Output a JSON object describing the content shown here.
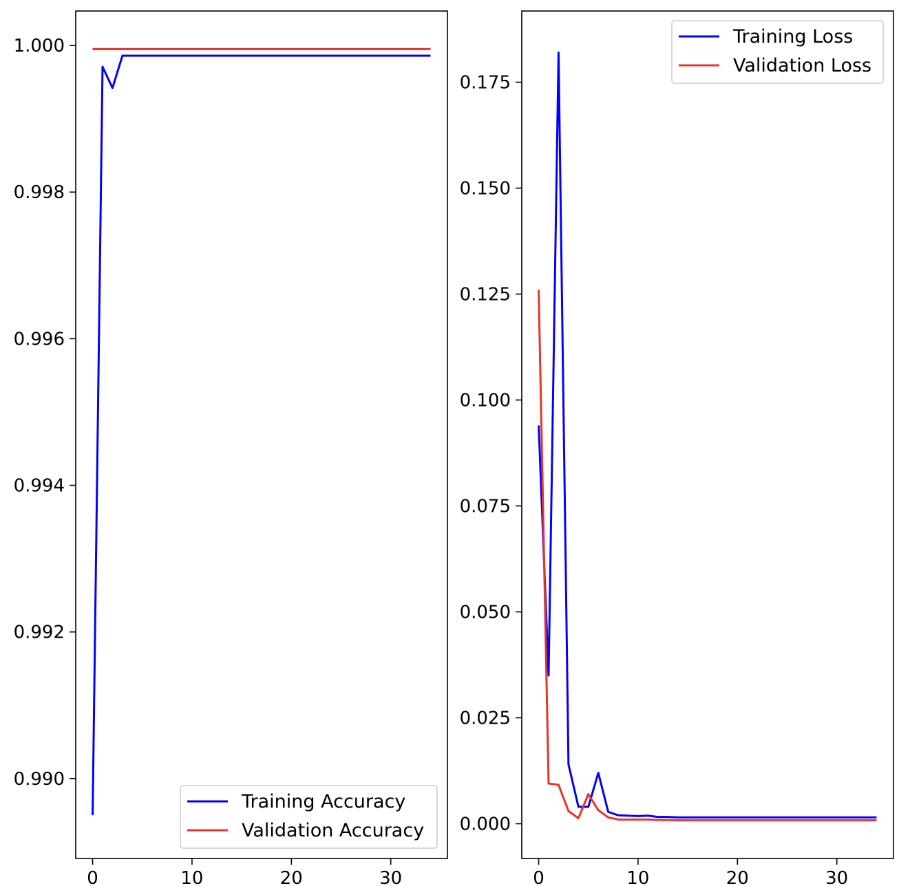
{
  "chart_data": [
    {
      "type": "line",
      "title": "",
      "xlabel": "",
      "ylabel": "",
      "xlim": [
        -1.7,
        35.7
      ],
      "ylim": [
        0.98891,
        1.00047
      ],
      "x_ticks": [
        0,
        10,
        20,
        30
      ],
      "x_tick_labels": [
        "0",
        "10",
        "20",
        "30"
      ],
      "y_ticks": [
        0.99,
        0.992,
        0.994,
        0.996,
        0.998,
        1.0
      ],
      "y_tick_labels": [
        "0.990",
        "0.992",
        "0.994",
        "0.996",
        "0.998",
        "1.000"
      ],
      "grid": false,
      "legend_position": "lower-right",
      "x": [
        0,
        1,
        2,
        3,
        4,
        5,
        6,
        7,
        8,
        9,
        10,
        11,
        12,
        13,
        14,
        15,
        16,
        17,
        18,
        19,
        20,
        21,
        22,
        23,
        24,
        25,
        26,
        27,
        28,
        29,
        30,
        31,
        32,
        33,
        34
      ],
      "series": [
        {
          "name": "Training Accuracy",
          "color": "#0000ff",
          "values": [
            0.9895,
            0.99971,
            0.99942,
            0.99986,
            0.99986,
            0.99986,
            0.99986,
            0.99986,
            0.99986,
            0.99986,
            0.99986,
            0.99986,
            0.99986,
            0.99986,
            0.99986,
            0.99986,
            0.99986,
            0.99986,
            0.99986,
            0.99986,
            0.99986,
            0.99986,
            0.99986,
            0.99986,
            0.99986,
            0.99986,
            0.99986,
            0.99986,
            0.99986,
            0.99986,
            0.99986,
            0.99986,
            0.99986,
            0.99986,
            0.99986
          ]
        },
        {
          "name": "Validation Accuracy",
          "color": "#e8332a",
          "values": [
            0.99995,
            0.99995,
            0.99995,
            0.99995,
            0.99995,
            0.99995,
            0.99995,
            0.99995,
            0.99995,
            0.99995,
            0.99995,
            0.99995,
            0.99995,
            0.99995,
            0.99995,
            0.99995,
            0.99995,
            0.99995,
            0.99995,
            0.99995,
            0.99995,
            0.99995,
            0.99995,
            0.99995,
            0.99995,
            0.99995,
            0.99995,
            0.99995,
            0.99995,
            0.99995,
            0.99995,
            0.99995,
            0.99995,
            0.99995,
            0.99995
          ]
        }
      ]
    },
    {
      "type": "line",
      "title": "",
      "xlabel": "",
      "ylabel": "",
      "xlim": [
        -1.7,
        35.7
      ],
      "ylim": [
        -0.0082,
        0.1918
      ],
      "x_ticks": [
        0,
        10,
        20,
        30
      ],
      "x_tick_labels": [
        "0",
        "10",
        "20",
        "30"
      ],
      "y_ticks": [
        0.0,
        0.025,
        0.05,
        0.075,
        0.1,
        0.125,
        0.15,
        0.175
      ],
      "y_tick_labels": [
        "0.000",
        "0.025",
        "0.050",
        "0.075",
        "0.100",
        "0.125",
        "0.150",
        "0.175"
      ],
      "grid": false,
      "legend_position": "upper-right",
      "x": [
        0,
        1,
        2,
        3,
        4,
        5,
        6,
        7,
        8,
        9,
        10,
        11,
        12,
        13,
        14,
        15,
        16,
        17,
        18,
        19,
        20,
        21,
        22,
        23,
        24,
        25,
        26,
        27,
        28,
        29,
        30,
        31,
        32,
        33,
        34
      ],
      "series": [
        {
          "name": "Training Loss",
          "color": "#0000ff",
          "values": [
            0.094,
            0.035,
            0.182,
            0.014,
            0.004,
            0.004,
            0.012,
            0.0028,
            0.002,
            0.0019,
            0.0018,
            0.0019,
            0.0016,
            0.0016,
            0.0015,
            0.0015,
            0.0015,
            0.0015,
            0.0015,
            0.0015,
            0.0015,
            0.0015,
            0.0015,
            0.0015,
            0.0015,
            0.0015,
            0.0015,
            0.0015,
            0.0015,
            0.0015,
            0.0015,
            0.0015,
            0.0015,
            0.0015,
            0.0015
          ]
        },
        {
          "name": "Validation Loss",
          "color": "#e8332a",
          "values": [
            0.126,
            0.0095,
            0.0092,
            0.003,
            0.0013,
            0.007,
            0.0032,
            0.0015,
            0.001,
            0.001,
            0.001,
            0.001,
            0.0009,
            0.0009,
            0.0008,
            0.0008,
            0.0008,
            0.0008,
            0.0008,
            0.0008,
            0.0008,
            0.0008,
            0.0008,
            0.0008,
            0.0008,
            0.0008,
            0.0008,
            0.0008,
            0.0008,
            0.0008,
            0.0008,
            0.0008,
            0.0008,
            0.0008,
            0.0008
          ]
        }
      ]
    }
  ]
}
